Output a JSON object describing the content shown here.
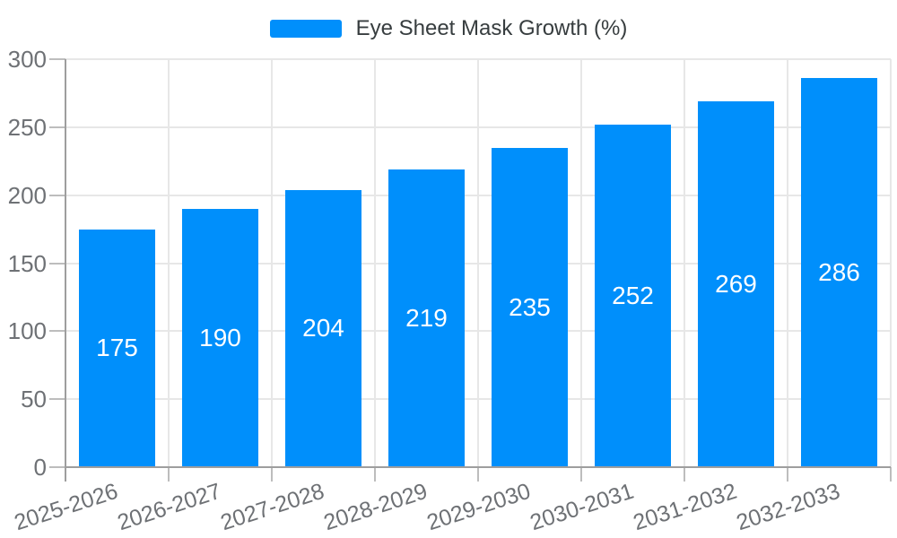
{
  "legend": {
    "label": "Eye Sheet Mask Growth (%)",
    "position": "top"
  },
  "colors": {
    "bar": "#008FFB",
    "grid": "#e7e7e7",
    "axis": "#9e9e9e",
    "tick": "#bdbdbd",
    "axis_label": "#6e7175",
    "legend_text": "#373d3f",
    "value_label": "#ffffff",
    "background": "#ffffff"
  },
  "chart_data": {
    "type": "bar",
    "title": "Eye Sheet Mask Growth (%)",
    "categories": [
      "2025-2026",
      "2026-2027",
      "2027-2028",
      "2028-2029",
      "2029-2030",
      "2030-2031",
      "2031-2032",
      "2032-2033"
    ],
    "values": [
      175,
      190,
      204,
      219,
      235,
      252,
      269,
      286
    ],
    "xlabel": "",
    "ylabel": "",
    "ylim": [
      0,
      300
    ],
    "yticks": [
      0,
      50,
      100,
      150,
      200,
      250,
      300
    ],
    "grid": true,
    "legend_position": "top",
    "value_labels": "inside-center",
    "x_label_rotation_deg": -18
  }
}
